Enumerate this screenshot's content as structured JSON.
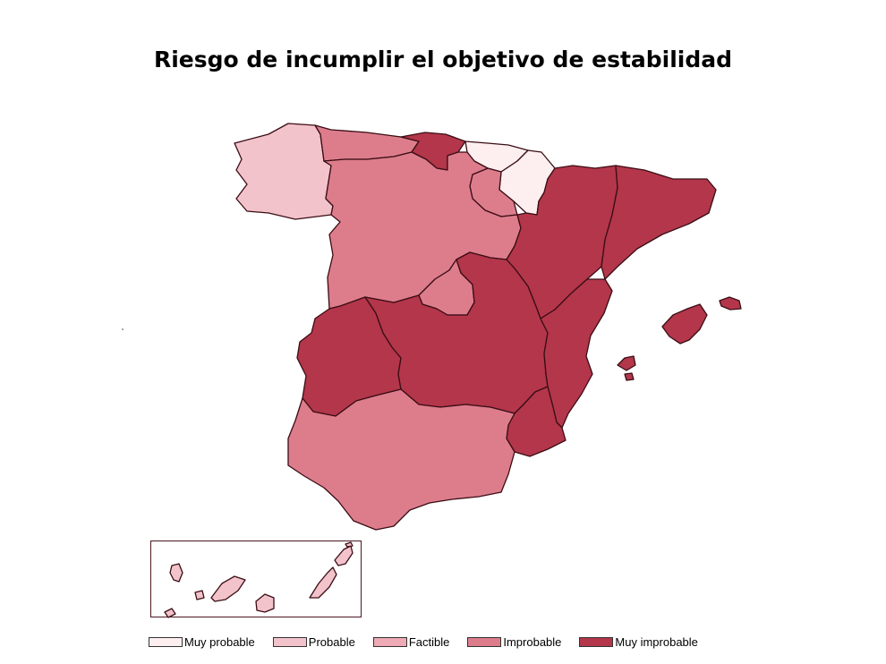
{
  "title": "Riesgo de incumplir el objetivo de estabilidad",
  "colors": {
    "muy_probable": "#fdeef0",
    "probable": "#f3c3cb",
    "factible": "#eeaab5",
    "improbable": "#dd7d8c",
    "muy_improbable": "#b3364b",
    "border": "#3a0d14"
  },
  "legend": [
    {
      "label": "Muy probable",
      "color": "#fdeef0"
    },
    {
      "label": "Probable",
      "color": "#f3c3cb"
    },
    {
      "label": "Factible",
      "color": "#eeaab5"
    },
    {
      "label": "Improbable",
      "color": "#dd7d8c"
    },
    {
      "label": "Muy improbable",
      "color": "#b3364b"
    }
  ],
  "regions": [
    {
      "name": "Galicia",
      "category": "Probable"
    },
    {
      "name": "Asturias",
      "category": "Improbable"
    },
    {
      "name": "Cantabria",
      "category": "Muy improbable"
    },
    {
      "name": "País Vasco",
      "category": "Muy probable"
    },
    {
      "name": "Navarra",
      "category": "Muy probable"
    },
    {
      "name": "La Rioja",
      "category": "Improbable"
    },
    {
      "name": "Castilla y León",
      "category": "Improbable"
    },
    {
      "name": "Aragón",
      "category": "Muy improbable"
    },
    {
      "name": "Cataluña",
      "category": "Muy improbable"
    },
    {
      "name": "Madrid",
      "category": "Improbable"
    },
    {
      "name": "Extremadura",
      "category": "Muy improbable"
    },
    {
      "name": "Castilla-La Mancha",
      "category": "Muy improbable"
    },
    {
      "name": "Comunidad Valenciana",
      "category": "Muy improbable"
    },
    {
      "name": "Murcia",
      "category": "Muy improbable"
    },
    {
      "name": "Andalucía",
      "category": "Improbable"
    },
    {
      "name": "Illes Balears",
      "category": "Muy improbable"
    },
    {
      "name": "Canarias",
      "category": "Probable"
    }
  ]
}
